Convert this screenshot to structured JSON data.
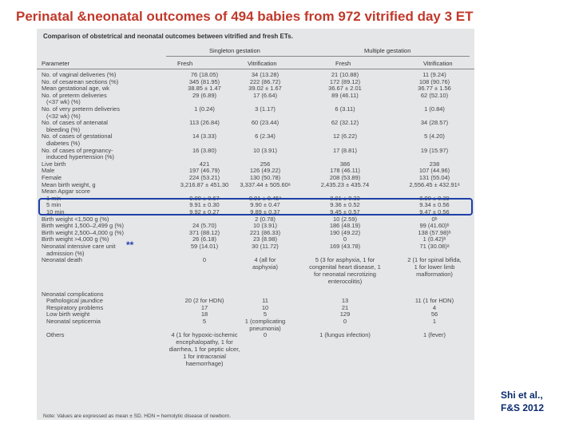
{
  "title": "Perinatal &neonatal outcomes of 494 babies from 972 vitrified day 3 ET",
  "table": {
    "caption": "Comparison of obstetrical and neonatal outcomes between vitrified and fresh ETs.",
    "group_single": "Singleton gestation",
    "group_multiple": "Multiple gestation",
    "columns": [
      "Parameter",
      "Fresh",
      "Vitrification",
      "Fresh",
      "Vitrification"
    ],
    "rows": [
      {
        "p": "No. of vaginal deliveries (%)",
        "v": [
          "76 (18.05)",
          "34 (13.28)",
          "21 (10.88)",
          "11 (9.24)"
        ]
      },
      {
        "p": "No. of cesarean sections (%)",
        "v": [
          "345 (81.95)",
          "222 (86.72)",
          "172 (89.12)",
          "108 (90.76)"
        ]
      },
      {
        "p": "Mean gestational age, wk",
        "v": [
          "38.85 ± 1.47",
          "39.02 ± 1.67",
          "36.67 ± 2.01",
          "36.77 ± 1.56"
        ]
      },
      {
        "p": "No. of preterm deliveries",
        "v": [
          "29 (6.89)",
          "17 (6.64)",
          "89 (46.11)",
          "62 (52.10)"
        ]
      },
      {
        "p": "(<37 wk) (%)",
        "i": true,
        "v": [
          "",
          "",
          "",
          ""
        ]
      },
      {
        "p": "No. of very preterm deliveries",
        "v": [
          "1 (0.24)",
          "3 (1.17)",
          "6 (3.11)",
          "1 (0.84)"
        ]
      },
      {
        "p": "(<32 wk) (%)",
        "i": true,
        "v": [
          "",
          "",
          "",
          ""
        ]
      },
      {
        "p": "No. of cases of antenatal",
        "v": [
          "113 (26.84)",
          "60 (23.44)",
          "62 (32.12)",
          "34 (28.57)"
        ]
      },
      {
        "p": "bleeding (%)",
        "i": true,
        "v": [
          "",
          "",
          "",
          ""
        ]
      },
      {
        "p": "No. of cases of gestational",
        "v": [
          "14 (3.33)",
          "6 (2.34)",
          "12 (6.22)",
          "5 (4.20)"
        ]
      },
      {
        "p": "diabetes (%)",
        "i": true,
        "v": [
          "",
          "",
          "",
          ""
        ]
      },
      {
        "p": "No. of cases of pregnancy-",
        "v": [
          "16 (3.80)",
          "10 (3.91)",
          "17 (8.81)",
          "19 (15.97)"
        ]
      },
      {
        "p": "induced hypertension (%)",
        "i": true,
        "v": [
          "",
          "",
          "",
          ""
        ]
      },
      {
        "p": "Live birth",
        "v": [
          "421",
          "256",
          "386",
          "238"
        ]
      },
      {
        "p": "Male",
        "v": [
          "197 (46.79)",
          "126 (49.22)",
          "178 (46.11)",
          "107 (44.96)"
        ]
      },
      {
        "p": "Female",
        "v": [
          "224 (53.21)",
          "130 (50.78)",
          "208 (53.89)",
          "131 (55.04)"
        ]
      },
      {
        "p": "Mean birth weight, g",
        "v": [
          "3,216.87 ± 451.30",
          "3,337.44 ± 505.60ᵃ",
          "2,435.23 ± 435.74",
          "2,556.45 ± 432.91ᵃ"
        ]
      },
      {
        "p": "Mean Apgar score",
        "v": [
          "",
          "",
          "",
          ""
        ]
      },
      {
        "p": "1 min",
        "i": true,
        "v": [
          "9.00 ± 0.67",
          "8.91 ± 0.45ᵃ",
          "8.91 ± 0.33",
          "8.90 ± 0.39"
        ]
      },
      {
        "p": "5 min",
        "i": true,
        "v": [
          "9.91 ± 0.30",
          "9.90 ± 0.47",
          "9.36 ± 0.52",
          "9.34 ± 0.56"
        ]
      },
      {
        "p": "10 min",
        "i": true,
        "v": [
          "9.92 ± 0.27",
          "9.89 ± 0.37",
          "9.45 ± 0.57",
          "9.47 ± 0.56"
        ]
      },
      {
        "p": "Birth weight <1,500 g (%)",
        "v": [
          "",
          "2 (0.78)",
          "10 (2.59)",
          "0ᵇ"
        ]
      },
      {
        "p": "Birth weight 1,500–2,499 g (%)",
        "v": [
          "24 (5.70)",
          "10 (3.91)",
          "186 (48.19)",
          "99 (41.60)ᵇ"
        ]
      },
      {
        "p": "Birth weight 2,500–4,000 g (%)",
        "v": [
          "371 (88.12)",
          "221 (86.33)",
          "190 (49.22)",
          "138 (57.98)ᵇ"
        ]
      },
      {
        "p": "Birth weight >4,000 g (%)",
        "v": [
          "26 (6.18)",
          "23 (8.98)",
          "0",
          "1 (0.42)ᵇ"
        ]
      },
      {
        "p": "Neonatal intensive care unit",
        "v": [
          "59 (14.01)",
          "30 (11.72)",
          "169 (43.78)",
          "71 (30.08)ᵃ"
        ]
      },
      {
        "p": "admission (%)",
        "i": true,
        "v": [
          "",
          "",
          "",
          ""
        ]
      },
      {
        "p": "Neonatal death",
        "v": [
          "0",
          "4 (all for\nasphyxia)",
          "5 (3 for asphyxia, 1 for\ncongenital heart disease, 1\nfor neonatal necrotizing\nenterocolitis)",
          "2 (1 for spinal bifida,\n1 for lower limb\nmalformation)"
        ]
      },
      {
        "p": "Neonatal complications",
        "v": [
          "",
          "",
          "",
          ""
        ],
        "gap": true
      },
      {
        "p": "Pathological jaundice",
        "i": true,
        "v": [
          "20 (2 for HDN)",
          "11",
          "13",
          "11 (1 for HDN)"
        ]
      },
      {
        "p": "Respiratory problems",
        "i": true,
        "v": [
          "17",
          "10",
          "21",
          "4"
        ]
      },
      {
        "p": "Low birth weight",
        "i": true,
        "v": [
          "18",
          "5",
          "129",
          "56"
        ]
      },
      {
        "p": "Neonatal septicemia",
        "i": true,
        "v": [
          "5",
          "1 (complicating\npneumonia)",
          "0",
          "1"
        ]
      },
      {
        "p": "Others",
        "i": true,
        "v": [
          "4 (1 for hypoxic-ischemic\nencephalopathy, 1 for\ndiarrhea, 1 for peptic ulcer,\n1 for intracranial\nhaemorrhage)",
          "0",
          "1 (fungus infection)",
          "1 (fever)"
        ]
      }
    ],
    "note": "Note: Values are expressed as mean ± SD. HDN = hemolytic disease of newborn."
  },
  "stars": "**",
  "source": {
    "line1": "Shi et al.,",
    "line2": "F&S 2012"
  },
  "colors": {
    "title": "#c0392b",
    "highlight": "#1f3fa8",
    "source": "#0a2a6e",
    "table_bg": "#e4e6e7"
  }
}
